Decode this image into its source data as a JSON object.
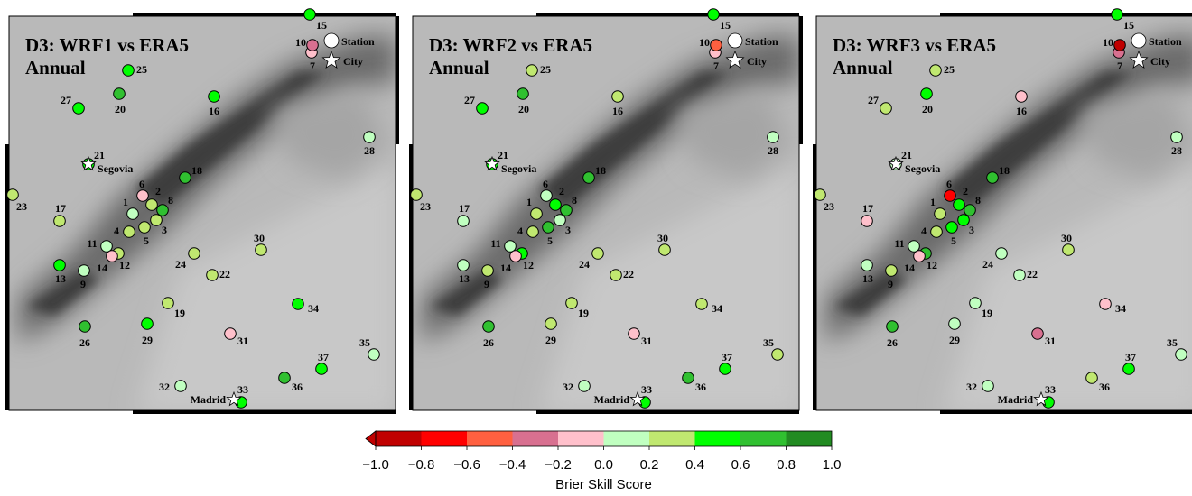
{
  "panels": [
    {
      "title": "D3: WRF1 vs ERA5",
      "subtitle": "Annual",
      "values": [
        0.1,
        0.3,
        0.3,
        0.3,
        0.3,
        -0.1,
        -0.1,
        0.7,
        0.1,
        -0.3,
        0.1,
        0.3,
        0.5,
        -0.1,
        0.5,
        0.5,
        0.3,
        0.7,
        0.3,
        0.7,
        0.5,
        0.3,
        0.3,
        0.3,
        0.5,
        0.7,
        0.5,
        0.1,
        0.5,
        0.3,
        -0.1,
        0.1,
        0.5,
        0.5,
        0.1,
        0.7,
        0.5
      ]
    },
    {
      "title": "D3: WRF2 vs ERA5",
      "subtitle": "Annual",
      "values": [
        0.3,
        0.5,
        0.1,
        0.3,
        0.7,
        0.1,
        -0.1,
        0.7,
        0.3,
        -0.5,
        0.1,
        0.5,
        0.1,
        -0.1,
        0.5,
        0.3,
        0.1,
        0.7,
        0.3,
        0.7,
        0.5,
        0.3,
        0.3,
        0.3,
        0.3,
        0.7,
        0.5,
        0.1,
        0.3,
        0.3,
        -0.1,
        0.1,
        0.5,
        0.3,
        0.3,
        0.7,
        0.5
      ]
    },
    {
      "title": "D3: WRF3 vs ERA5",
      "subtitle": "Annual",
      "values": [
        0.3,
        0.5,
        0.5,
        0.3,
        0.5,
        -0.7,
        -0.3,
        0.7,
        0.3,
        -0.9,
        0.1,
        0.7,
        0.1,
        -0.1,
        0.5,
        -0.1,
        -0.1,
        0.7,
        0.1,
        0.5,
        0.1,
        0.1,
        0.3,
        0.1,
        0.3,
        0.7,
        0.3,
        0.1,
        0.1,
        0.3,
        -0.3,
        0.1,
        0.5,
        -0.1,
        0.1,
        0.3,
        0.5
      ]
    }
  ],
  "station_ids": [
    "1",
    "2",
    "3",
    "4",
    "5",
    "6",
    "7",
    "8",
    "9",
    "10",
    "11",
    "12",
    "13",
    "14",
    "15",
    "16",
    "17",
    "18",
    "19",
    "20",
    "21",
    "22",
    "23",
    "24",
    "25",
    "26",
    "27",
    "28",
    "29",
    "30",
    "31",
    "32",
    "33",
    "34",
    "35",
    "36",
    "37"
  ],
  "legend": {
    "station": "Station",
    "city": "City"
  },
  "cities": [
    "Segovia",
    "Madrid"
  ],
  "colorbar": {
    "label": "Brier Skill Score",
    "colors": [
      "#c00000",
      "#ff0000",
      "#ff6040",
      "#d87090",
      "#ffc0cb",
      "#c0ffc0",
      "#c0e870",
      "#00ff00",
      "#30c030",
      "#228b22"
    ],
    "ticks": [
      {
        "value": -1,
        "label": "−1.0"
      },
      {
        "value": -0.8,
        "label": "−0.8"
      },
      {
        "value": -0.6,
        "label": "−0.6"
      },
      {
        "value": -0.4,
        "label": "−0.4"
      },
      {
        "value": -0.2,
        "label": "−0.2"
      },
      {
        "value": 0,
        "label": "0.0"
      },
      {
        "value": 0.2,
        "label": "0.2"
      },
      {
        "value": 0.4,
        "label": "0.4"
      },
      {
        "value": 0.6,
        "label": "0.6"
      },
      {
        "value": 0.8,
        "label": "0.8"
      },
      {
        "value": 1,
        "label": "1.0"
      }
    ]
  }
}
